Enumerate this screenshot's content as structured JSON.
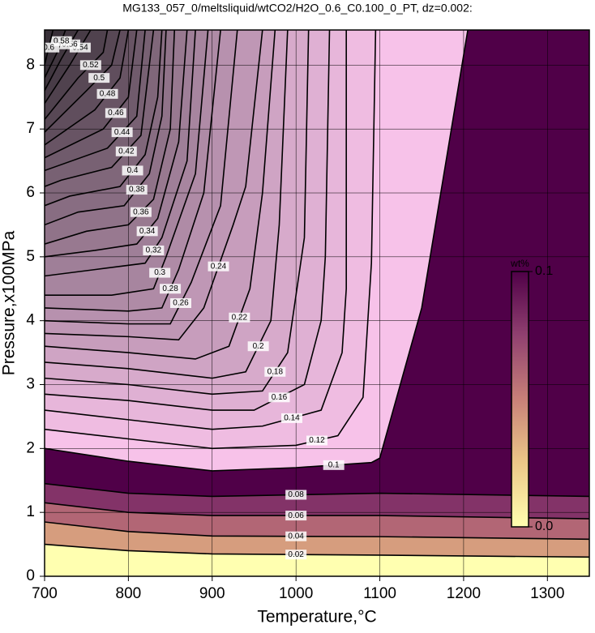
{
  "chart_data": {
    "type": "contour",
    "title": "MG133_057_0/meltsliquid/wtCO2/H2O_0.6_C0.100_0_PT, dz=0.002:",
    "xlabel": "Temperature,°C",
    "ylabel": "Pressure,x100MPa",
    "xlim": [
      700,
      1350
    ],
    "ylim": [
      0,
      8.55
    ],
    "xticks": [
      700,
      800,
      900,
      1000,
      1100,
      1200,
      1300
    ],
    "yticks": [
      0,
      1,
      2,
      3,
      4,
      5,
      6,
      7,
      8
    ],
    "grid": true,
    "colorbar": {
      "label": "wt%",
      "lim": [
        0,
        0.1
      ],
      "ticks": [
        {
          "value": 0,
          "label": "0.0"
        },
        0.1
      ],
      "colors": [
        "#ffffb0",
        "#ecc888",
        "#c88078",
        "#904070",
        "#500048"
      ],
      "over_colors": [
        "#ffc8f0",
        "#383038"
      ]
    },
    "contours": [
      {
        "level": 0.02,
        "x": [
          700,
          800,
          900,
          1100,
          1350
        ],
        "y": [
          0.5,
          0.4,
          0.35,
          0.33,
          0.3
        ]
      },
      {
        "level": 0.04,
        "x": [
          700,
          800,
          900,
          1100,
          1350
        ],
        "y": [
          0.85,
          0.7,
          0.63,
          0.62,
          0.58
        ]
      },
      {
        "level": 0.06,
        "x": [
          700,
          800,
          900,
          1100,
          1350
        ],
        "y": [
          1.15,
          1.0,
          0.95,
          0.95,
          0.9
        ]
      },
      {
        "level": 0.08,
        "x": [
          700,
          800,
          900,
          1100,
          1350
        ],
        "y": [
          1.45,
          1.3,
          1.25,
          1.3,
          1.25
        ]
      },
      {
        "level": 0.1,
        "x": [
          700,
          800,
          900,
          1000,
          1090,
          1100,
          1150,
          1205
        ],
        "y": [
          2.0,
          1.8,
          1.65,
          1.7,
          1.78,
          1.85,
          4.2,
          8.55
        ]
      },
      {
        "level": 0.12,
        "x": [
          700,
          800,
          900,
          1000,
          1050,
          1080,
          1090,
          1095
        ],
        "y": [
          2.3,
          2.15,
          2.0,
          2.05,
          2.2,
          2.8,
          4.9,
          8.55
        ]
      },
      {
        "level": 0.14,
        "x": [
          700,
          800,
          900,
          960,
          1030,
          1055,
          1060,
          1060
        ],
        "y": [
          2.6,
          2.45,
          2.3,
          2.35,
          2.6,
          3.5,
          4.5,
          8.55
        ]
      },
      {
        "level": 0.16,
        "x": [
          700,
          800,
          900,
          950,
          1010,
          1030,
          1035,
          1040
        ],
        "y": [
          2.85,
          2.75,
          2.6,
          2.6,
          3.0,
          4.0,
          5.0,
          8.55
        ]
      },
      {
        "level": 0.18,
        "x": [
          700,
          800,
          900,
          960,
          990,
          1010,
          1015
        ],
        "y": [
          3.1,
          3.0,
          2.85,
          2.9,
          3.5,
          5.3,
          8.55
        ]
      },
      {
        "level": 0.2,
        "x": [
          700,
          800,
          900,
          940,
          970,
          980,
          990
        ],
        "y": [
          3.35,
          3.25,
          3.1,
          3.2,
          4.0,
          5.5,
          8.55
        ]
      },
      {
        "level": 0.22,
        "x": [
          700,
          800,
          880,
          920,
          945,
          960,
          975
        ],
        "y": [
          3.6,
          3.5,
          3.4,
          3.6,
          4.5,
          6.0,
          8.55
        ]
      },
      {
        "level": 0.24,
        "x": [
          700,
          800,
          860,
          890,
          925,
          940,
          960
        ],
        "y": [
          3.8,
          3.75,
          3.7,
          4.2,
          5.5,
          6.1,
          8.55
        ]
      },
      {
        "level": 0.26,
        "x": [
          700,
          800,
          850,
          875,
          910,
          930
        ],
        "y": [
          4.0,
          3.95,
          3.95,
          4.6,
          5.8,
          8.55
        ]
      },
      {
        "level": 0.28,
        "x": [
          700,
          800,
          840,
          860,
          890,
          910
        ],
        "y": [
          4.2,
          4.15,
          4.2,
          4.8,
          6.0,
          8.55
        ]
      },
      {
        "level": 0.3,
        "x": [
          700,
          780,
          830,
          845,
          880,
          895
        ],
        "y": [
          4.4,
          4.4,
          4.5,
          5.0,
          6.3,
          8.55
        ]
      },
      {
        "level": 0.32,
        "x": [
          700,
          760,
          820,
          840,
          870,
          880
        ],
        "y": [
          4.7,
          4.8,
          4.9,
          5.3,
          6.5,
          8.55
        ]
      },
      {
        "level": 0.34,
        "x": [
          700,
          760,
          810,
          835,
          860,
          870
        ],
        "y": [
          5.0,
          5.1,
          5.2,
          5.6,
          6.8,
          8.55
        ]
      },
      {
        "level": 0.36,
        "x": [
          700,
          750,
          800,
          830,
          850,
          855
        ],
        "y": [
          5.2,
          5.4,
          5.5,
          5.9,
          7.0,
          8.55
        ]
      },
      {
        "level": 0.38,
        "x": [
          700,
          740,
          795,
          825,
          840,
          845
        ],
        "y": [
          5.5,
          5.7,
          5.8,
          6.3,
          7.2,
          8.55
        ]
      },
      {
        "level": 0.4,
        "x": [
          700,
          730,
          790,
          820,
          835,
          840
        ],
        "y": [
          5.8,
          5.95,
          6.1,
          6.6,
          7.5,
          8.55
        ]
      },
      {
        "level": 0.42,
        "x": [
          700,
          720,
          780,
          815,
          830
        ],
        "y": [
          6.1,
          6.2,
          6.4,
          6.9,
          8.55
        ]
      },
      {
        "level": 0.44,
        "x": [
          700,
          775,
          810,
          820
        ],
        "y": [
          6.35,
          6.7,
          7.2,
          8.55
        ]
      },
      {
        "level": 0.46,
        "x": [
          700,
          770,
          800,
          810
        ],
        "y": [
          6.55,
          7.0,
          7.5,
          8.55
        ]
      },
      {
        "level": 0.48,
        "x": [
          700,
          760,
          790,
          800
        ],
        "y": [
          6.75,
          7.3,
          7.8,
          8.55
        ]
      },
      {
        "level": 0.5,
        "x": [
          700,
          750,
          780,
          790
        ],
        "y": [
          6.95,
          7.6,
          8.0,
          8.55
        ]
      },
      {
        "level": 0.52,
        "x": [
          700,
          740,
          770,
          775
        ],
        "y": [
          7.15,
          7.8,
          8.2,
          8.55
        ]
      },
      {
        "level": 0.54,
        "x": [
          700,
          730,
          755
        ],
        "y": [
          7.4,
          8.0,
          8.55
        ]
      },
      {
        "level": 0.56,
        "x": [
          700,
          720,
          740
        ],
        "y": [
          7.6,
          8.1,
          8.55
        ]
      },
      {
        "level": 0.58,
        "x": [
          700,
          715,
          725
        ],
        "y": [
          7.8,
          8.2,
          8.55
        ]
      },
      {
        "level": 0.6,
        "x": [
          700,
          710
        ],
        "y": [
          8.0,
          8.55
        ]
      }
    ]
  }
}
